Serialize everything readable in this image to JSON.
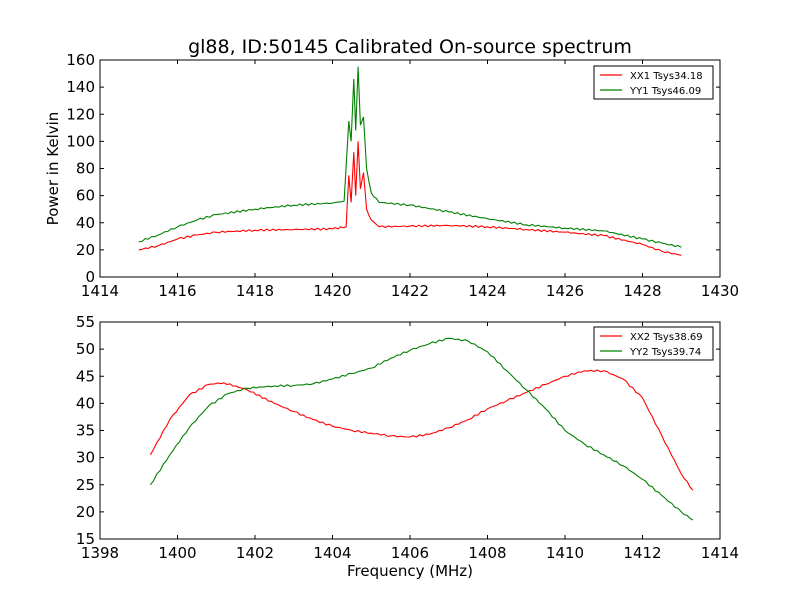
{
  "chart_data": [
    {
      "type": "line",
      "title": "gl88, ID:50145 Calibrated On-source spectrum",
      "xlabel": "",
      "ylabel": "Power in Kelvin",
      "xlim": [
        1414,
        1430
      ],
      "ylim": [
        0,
        160
      ],
      "xticks": [
        1414,
        1416,
        1418,
        1420,
        1422,
        1424,
        1426,
        1428,
        1430
      ],
      "yticks": [
        0,
        20,
        40,
        60,
        80,
        100,
        120,
        140,
        160
      ],
      "grid": false,
      "legend_position": "top-right",
      "series": [
        {
          "name": "XX1 Tsys34.18",
          "color": "#ff0000",
          "points": [
            [
              1415.0,
              20
            ],
            [
              1415.5,
              23
            ],
            [
              1416.0,
              28
            ],
            [
              1416.5,
              31
            ],
            [
              1417.0,
              33
            ],
            [
              1418.0,
              34.5
            ],
            [
              1419.0,
              35
            ],
            [
              1420.0,
              35.5
            ],
            [
              1420.35,
              37
            ],
            [
              1420.42,
              75
            ],
            [
              1420.48,
              55
            ],
            [
              1420.55,
              92
            ],
            [
              1420.6,
              60
            ],
            [
              1420.66,
              100
            ],
            [
              1420.72,
              65
            ],
            [
              1420.8,
              77
            ],
            [
              1420.88,
              50
            ],
            [
              1421.0,
              42
            ],
            [
              1421.2,
              37
            ],
            [
              1422.0,
              37.5
            ],
            [
              1423.0,
              38
            ],
            [
              1424.0,
              37
            ],
            [
              1425.0,
              35
            ],
            [
              1426.0,
              33
            ],
            [
              1427.0,
              30.5
            ],
            [
              1428.0,
              24
            ],
            [
              1428.5,
              19
            ],
            [
              1429.0,
              16
            ]
          ]
        },
        {
          "name": "YY1 Tsys46.09",
          "color": "#008000",
          "points": [
            [
              1415.0,
              26
            ],
            [
              1415.5,
              31
            ],
            [
              1416.0,
              37
            ],
            [
              1416.5,
              42
            ],
            [
              1417.0,
              46
            ],
            [
              1418.0,
              50
            ],
            [
              1419.0,
              53
            ],
            [
              1420.0,
              54.5
            ],
            [
              1420.3,
              56
            ],
            [
              1420.42,
              115
            ],
            [
              1420.48,
              100
            ],
            [
              1420.55,
              146
            ],
            [
              1420.6,
              108
            ],
            [
              1420.66,
              155
            ],
            [
              1420.72,
              112
            ],
            [
              1420.8,
              118
            ],
            [
              1420.88,
              80
            ],
            [
              1421.0,
              62
            ],
            [
              1421.2,
              55
            ],
            [
              1422.0,
              53
            ],
            [
              1423.0,
              48
            ],
            [
              1424.0,
              43
            ],
            [
              1425.0,
              38.5
            ],
            [
              1426.0,
              36
            ],
            [
              1427.0,
              34
            ],
            [
              1428.0,
              28
            ],
            [
              1428.5,
              25
            ],
            [
              1429.0,
              22
            ]
          ]
        }
      ]
    },
    {
      "type": "line",
      "title": "",
      "xlabel": "Frequency (MHz)",
      "ylabel": "",
      "xlim": [
        1398,
        1414
      ],
      "ylim": [
        15,
        55
      ],
      "xticks": [
        1398,
        1400,
        1402,
        1404,
        1406,
        1408,
        1410,
        1412,
        1414
      ],
      "yticks": [
        15,
        20,
        25,
        30,
        35,
        40,
        45,
        50,
        55
      ],
      "grid": false,
      "legend_position": "top-right",
      "series": [
        {
          "name": "XX2 Tsys38.69",
          "color": "#ff0000",
          "points": [
            [
              1399.3,
              30.5
            ],
            [
              1399.8,
              37
            ],
            [
              1400.3,
              41.5
            ],
            [
              1400.8,
              43.5
            ],
            [
              1401.2,
              43.8
            ],
            [
              1401.8,
              42.5
            ],
            [
              1402.5,
              40
            ],
            [
              1403.0,
              38.5
            ],
            [
              1403.5,
              37
            ],
            [
              1404.0,
              35.8
            ],
            [
              1404.5,
              35
            ],
            [
              1405.0,
              34.5
            ],
            [
              1405.5,
              34
            ],
            [
              1406.0,
              33.8
            ],
            [
              1406.5,
              34.3
            ],
            [
              1407.0,
              35.5
            ],
            [
              1407.5,
              37
            ],
            [
              1408.0,
              39
            ],
            [
              1408.5,
              40.5
            ],
            [
              1409.0,
              42
            ],
            [
              1409.5,
              43.5
            ],
            [
              1410.0,
              45
            ],
            [
              1410.5,
              46
            ],
            [
              1411.0,
              46
            ],
            [
              1411.5,
              44.5
            ],
            [
              1412.0,
              41
            ],
            [
              1412.5,
              34
            ],
            [
              1413.0,
              27
            ],
            [
              1413.3,
              24
            ]
          ]
        },
        {
          "name": "YY2 Tsys39.74",
          "color": "#008000",
          "points": [
            [
              1399.3,
              25
            ],
            [
              1399.8,
              30.5
            ],
            [
              1400.3,
              35.5
            ],
            [
              1400.8,
              39.5
            ],
            [
              1401.3,
              41.8
            ],
            [
              1401.8,
              42.8
            ],
            [
              1402.5,
              43.2
            ],
            [
              1403.0,
              43.3
            ],
            [
              1403.5,
              43.6
            ],
            [
              1404.0,
              44.5
            ],
            [
              1404.5,
              45.5
            ],
            [
              1405.0,
              46.5
            ],
            [
              1405.5,
              48.3
            ],
            [
              1406.0,
              49.8
            ],
            [
              1406.5,
              51
            ],
            [
              1407.0,
              52
            ],
            [
              1407.5,
              51.5
            ],
            [
              1408.0,
              49.5
            ],
            [
              1408.5,
              46
            ],
            [
              1409.0,
              42.5
            ],
            [
              1409.5,
              39
            ],
            [
              1410.0,
              35
            ],
            [
              1410.5,
              32.5
            ],
            [
              1411.0,
              30.5
            ],
            [
              1411.5,
              28.5
            ],
            [
              1412.0,
              26
            ],
            [
              1412.5,
              23
            ],
            [
              1413.0,
              20
            ],
            [
              1413.3,
              18.5
            ]
          ]
        }
      ]
    }
  ]
}
